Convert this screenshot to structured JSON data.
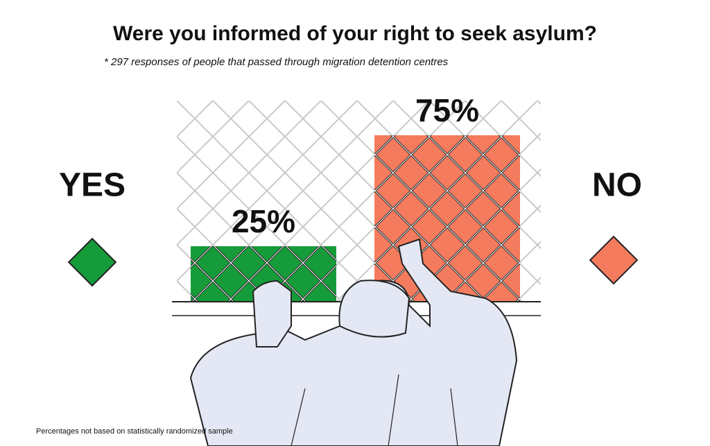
{
  "chart_data": {
    "type": "bar",
    "title": "Were you informed of your right to seek asylum?",
    "subtitle": "* 297 responses of people that passed through migration detention centres",
    "footnote": "Percentages not based on statistically randomized sample",
    "categories": [
      "YES",
      "NO"
    ],
    "values": [
      25,
      75
    ],
    "value_labels": [
      "25%",
      "75%"
    ],
    "colors": [
      "#169b3a",
      "#f47b5e"
    ]
  }
}
